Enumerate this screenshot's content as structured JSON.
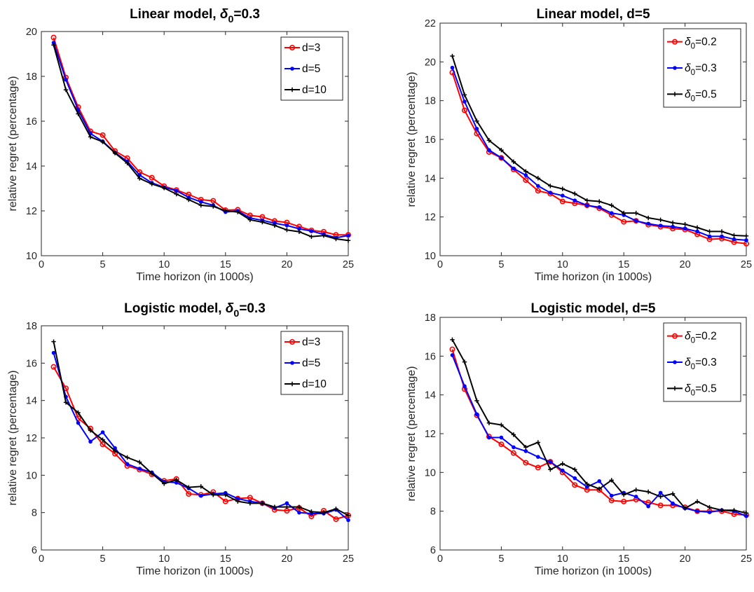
{
  "chart_data": [
    {
      "type": "line",
      "title": {
        "prefix": "Linear model, ",
        "sym": "δ",
        "sub": "0",
        "suffix": "=0.3"
      },
      "xlabel": "Time horizon (in 1000s)",
      "ylabel": "relative regret (percentage)",
      "xlim": [
        0,
        25
      ],
      "ylim": [
        10,
        20
      ],
      "xticks": [
        0,
        5,
        10,
        15,
        20,
        25
      ],
      "yticks": [
        10,
        12,
        14,
        16,
        18,
        20
      ],
      "legend_position": "top-right",
      "grid": false,
      "x": [
        1,
        2,
        3,
        4,
        5,
        6,
        7,
        8,
        9,
        10,
        11,
        12,
        13,
        14,
        15,
        16,
        17,
        18,
        19,
        20,
        21,
        22,
        23,
        24,
        25
      ],
      "series": [
        {
          "name": {
            "plain": "d=3"
          },
          "color": "#ff0000",
          "marker": "circle",
          "values": [
            19.73,
            17.95,
            16.63,
            15.55,
            15.38,
            14.67,
            14.35,
            13.73,
            13.48,
            13.1,
            12.93,
            12.73,
            12.5,
            12.45,
            12.03,
            12.05,
            11.8,
            11.73,
            11.55,
            11.48,
            11.3,
            11.13,
            11.07,
            10.93,
            10.93
          ]
        },
        {
          "name": {
            "plain": "d=5"
          },
          "color": "#0000ff",
          "marker": "dot",
          "values": [
            19.5,
            17.85,
            16.5,
            15.45,
            15.1,
            14.6,
            14.2,
            13.6,
            13.25,
            13.05,
            12.9,
            12.6,
            12.4,
            12.25,
            11.95,
            12.0,
            11.68,
            11.58,
            11.45,
            11.35,
            11.2,
            11.1,
            10.95,
            10.8,
            10.9
          ]
        },
        {
          "name": {
            "plain": "d=10"
          },
          "color": "#000000",
          "marker": "plus",
          "values": [
            19.4,
            17.4,
            16.33,
            15.3,
            15.08,
            14.58,
            14.13,
            13.45,
            13.2,
            13.02,
            12.75,
            12.5,
            12.25,
            12.2,
            12.0,
            11.95,
            11.6,
            11.5,
            11.35,
            11.15,
            11.07,
            10.85,
            10.9,
            10.75,
            10.68
          ]
        }
      ]
    },
    {
      "type": "line",
      "title": {
        "prefix": "Linear model, d=5",
        "sym": "",
        "sub": "",
        "suffix": ""
      },
      "xlabel": "Time horizon (in 1000s)",
      "ylabel": "relative regret (percentage)",
      "xlim": [
        0,
        25
      ],
      "ylim": [
        10,
        22
      ],
      "xticks": [
        0,
        5,
        10,
        15,
        20,
        25
      ],
      "yticks": [
        10,
        12,
        14,
        16,
        18,
        20,
        22
      ],
      "legend_position": "top-right",
      "grid": false,
      "x": [
        1,
        2,
        3,
        4,
        5,
        6,
        7,
        8,
        9,
        10,
        11,
        12,
        13,
        14,
        15,
        16,
        17,
        18,
        19,
        20,
        21,
        22,
        23,
        24,
        25
      ],
      "series": [
        {
          "name": {
            "sym": "δ",
            "sub": "0",
            "suffix": "=0.2"
          },
          "color": "#ff0000",
          "marker": "circle",
          "values": [
            19.45,
            17.5,
            16.3,
            15.35,
            15.05,
            14.45,
            13.9,
            13.35,
            13.2,
            12.8,
            12.7,
            12.6,
            12.45,
            12.1,
            11.75,
            11.8,
            11.6,
            11.5,
            11.4,
            11.35,
            11.1,
            10.85,
            10.88,
            10.7,
            10.62
          ]
        },
        {
          "name": {
            "sym": "δ",
            "sub": "0",
            "suffix": "=0.3"
          },
          "color": "#0000ff",
          "marker": "dot",
          "values": [
            19.7,
            17.95,
            16.55,
            15.45,
            15.05,
            14.5,
            14.15,
            13.6,
            13.25,
            13.1,
            12.85,
            12.6,
            12.5,
            12.2,
            12.1,
            11.8,
            11.65,
            11.55,
            11.5,
            11.4,
            11.25,
            11.0,
            11.0,
            10.85,
            10.8
          ]
        },
        {
          "name": {
            "sym": "δ",
            "sub": "0",
            "suffix": "=0.5"
          },
          "color": "#000000",
          "marker": "plus",
          "values": [
            20.3,
            18.3,
            16.95,
            15.95,
            15.45,
            14.85,
            14.35,
            14.0,
            13.6,
            13.45,
            13.2,
            12.85,
            12.8,
            12.6,
            12.2,
            12.2,
            11.95,
            11.85,
            11.7,
            11.62,
            11.45,
            11.25,
            11.25,
            11.05,
            11.02
          ]
        }
      ]
    },
    {
      "type": "line",
      "title": {
        "prefix": "Logistic model, ",
        "sym": "δ",
        "sub": "0",
        "suffix": "=0.3"
      },
      "xlabel": "Time horizon (in 1000s)",
      "ylabel": "relative regret (percentage)",
      "xlim": [
        0,
        25
      ],
      "ylim": [
        6,
        18
      ],
      "xticks": [
        0,
        5,
        10,
        15,
        20,
        25
      ],
      "yticks": [
        6,
        8,
        10,
        12,
        14,
        16,
        18
      ],
      "legend_position": "top-right",
      "grid": false,
      "x": [
        1,
        2,
        3,
        4,
        5,
        6,
        7,
        8,
        9,
        10,
        11,
        12,
        13,
        14,
        15,
        16,
        17,
        18,
        19,
        20,
        21,
        22,
        23,
        24,
        25
      ],
      "series": [
        {
          "name": {
            "plain": "d=3"
          },
          "color": "#ff0000",
          "marker": "circle",
          "values": [
            15.8,
            14.65,
            13.05,
            12.5,
            11.65,
            11.15,
            10.5,
            10.3,
            10.05,
            9.7,
            9.8,
            9.0,
            8.95,
            9.1,
            8.6,
            8.75,
            8.8,
            8.5,
            8.15,
            8.1,
            8.25,
            7.8,
            8.1,
            7.65,
            7.85
          ]
        },
        {
          "name": {
            "plain": "d=5"
          },
          "color": "#0000ff",
          "marker": "dot",
          "values": [
            16.55,
            14.2,
            12.8,
            11.8,
            12.3,
            11.45,
            10.6,
            10.35,
            10.15,
            9.65,
            9.6,
            9.3,
            8.9,
            9.0,
            9.05,
            8.75,
            8.6,
            8.5,
            8.25,
            8.5,
            8.0,
            7.95,
            7.95,
            8.15,
            7.6
          ]
        },
        {
          "name": {
            "plain": "d=10"
          },
          "color": "#000000",
          "marker": "plus",
          "values": [
            17.15,
            13.9,
            13.35,
            12.4,
            11.9,
            11.3,
            10.95,
            10.7,
            10.1,
            9.55,
            9.75,
            9.35,
            9.4,
            8.95,
            8.95,
            8.6,
            8.5,
            8.5,
            8.3,
            8.3,
            8.3,
            8.05,
            8.0,
            8.2,
            7.85
          ]
        }
      ]
    },
    {
      "type": "line",
      "title": {
        "prefix": "Logistic model, d=5",
        "sym": "",
        "sub": "",
        "suffix": ""
      },
      "xlabel": "Time horizon (in 1000s)",
      "ylabel": "relative regret (percentage)",
      "xlim": [
        0,
        25
      ],
      "ylim": [
        6,
        18
      ],
      "xticks": [
        0,
        5,
        10,
        15,
        20,
        25
      ],
      "yticks": [
        6,
        8,
        10,
        12,
        14,
        16,
        18
      ],
      "legend_position": "top-right",
      "grid": false,
      "x": [
        1,
        2,
        3,
        4,
        5,
        6,
        7,
        8,
        9,
        10,
        11,
        12,
        13,
        14,
        15,
        16,
        17,
        18,
        19,
        20,
        21,
        22,
        23,
        24,
        25
      ],
      "series": [
        {
          "name": {
            "sym": "δ",
            "sub": "0",
            "suffix": "=0.2"
          },
          "color": "#ff0000",
          "marker": "circle",
          "values": [
            16.35,
            14.3,
            12.95,
            11.85,
            11.45,
            11.0,
            10.5,
            10.25,
            10.55,
            10.0,
            9.35,
            9.1,
            9.1,
            8.55,
            8.5,
            8.6,
            8.45,
            8.3,
            8.3,
            8.2,
            8.0,
            8.0,
            8.0,
            7.85,
            7.8
          ]
        },
        {
          "name": {
            "sym": "δ",
            "sub": "0",
            "suffix": "=0.3"
          },
          "color": "#0000ff",
          "marker": "dot",
          "values": [
            16.05,
            14.45,
            13.0,
            11.8,
            11.8,
            11.3,
            11.1,
            10.8,
            10.55,
            10.1,
            9.7,
            9.25,
            9.55,
            8.8,
            8.95,
            8.75,
            8.25,
            8.95,
            8.4,
            8.15,
            8.0,
            7.95,
            8.05,
            8.0,
            7.75
          ]
        },
        {
          "name": {
            "sym": "δ",
            "sub": "0",
            "suffix": "=0.5"
          },
          "color": "#000000",
          "marker": "plus",
          "values": [
            16.85,
            15.7,
            13.7,
            12.55,
            12.45,
            11.95,
            11.3,
            11.55,
            10.15,
            10.45,
            10.15,
            9.4,
            9.15,
            9.6,
            8.85,
            9.1,
            9.0,
            8.75,
            8.9,
            8.15,
            8.5,
            8.2,
            8.05,
            8.05,
            7.9
          ]
        }
      ]
    }
  ]
}
